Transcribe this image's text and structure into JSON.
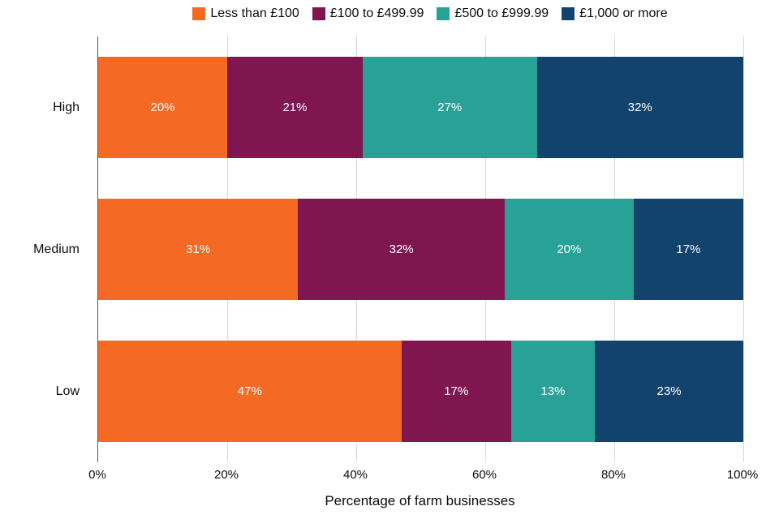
{
  "chart_data": {
    "type": "bar",
    "orientation": "horizontal",
    "stacked": true,
    "title": "",
    "xlabel": "Percentage of farm businesses",
    "ylabel": "",
    "categories": [
      "High",
      "Medium",
      "Low"
    ],
    "series": [
      {
        "name": "Less than £100",
        "color": "#F46A25",
        "values": [
          20,
          31,
          47
        ]
      },
      {
        "name": "£100 to £499.99",
        "color": "#801650",
        "values": [
          21,
          32,
          17
        ]
      },
      {
        "name": "£500 to £999.99",
        "color": "#28A197",
        "values": [
          27,
          20,
          13
        ]
      },
      {
        "name": "£1,000 or more",
        "color": "#12436D",
        "values": [
          32,
          17,
          23
        ]
      }
    ],
    "data_label_suffix": "%",
    "x_ticks": [
      "0%",
      "20%",
      "40%",
      "60%",
      "80%",
      "100%"
    ],
    "xlim": [
      0,
      100
    ],
    "grid": true,
    "legend_position": "top",
    "colors": {
      "gridline": "#d9d9d9",
      "axis_line": "#595959",
      "bar_label_text": "#ffffff",
      "tick_text": "#0b0c0c"
    }
  }
}
